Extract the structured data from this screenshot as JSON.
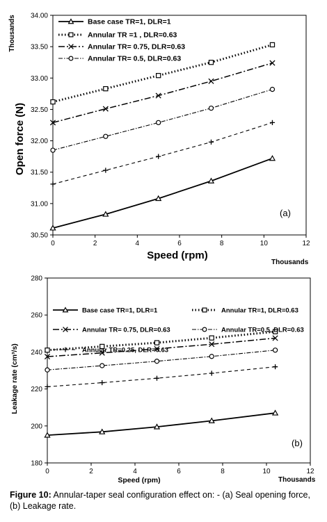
{
  "chart_data": [
    {
      "type": "line",
      "panel_label": "(a)",
      "title": "",
      "xlabel": "Speed (rpm)",
      "x_multiplier": "Thousands",
      "ylabel": "Open force (N)",
      "y_multiplier": "Thousands",
      "xlim": [
        0,
        12
      ],
      "ylim": [
        30.5,
        34.0
      ],
      "x_ticks": [
        "0",
        "2",
        "4",
        "6",
        "8",
        "10",
        "12"
      ],
      "y_ticks": [
        "30.50",
        "31.00",
        "31.50",
        "32.00",
        "32.50",
        "33.00",
        "33.50",
        "34.00"
      ],
      "grid": false,
      "legend_position": "top-left",
      "x": [
        0,
        2.5,
        5,
        7.5,
        10.4
      ],
      "series": [
        {
          "name": "Base case TR=1, DLR=1",
          "values": [
            30.61,
            30.83,
            31.08,
            31.36,
            31.72
          ]
        },
        {
          "name": "Annular TR =1 , DLR=0.63",
          "values": [
            32.62,
            32.83,
            33.04,
            33.25,
            33.53
          ]
        },
        {
          "name": "Annular TR= 0.75, DLR=0.63",
          "values": [
            32.29,
            32.51,
            32.72,
            32.95,
            33.24
          ]
        },
        {
          "name": "Annular TR= 0.5, DLR=0.63",
          "values": [
            31.85,
            32.07,
            32.29,
            32.52,
            32.82
          ]
        },
        {
          "name": "",
          "values": [
            31.31,
            31.53,
            31.75,
            31.98,
            32.29
          ]
        }
      ]
    },
    {
      "type": "line",
      "panel_label": "(b)",
      "title": "",
      "xlabel": "Speed  (rpm)",
      "x_multiplier": "Thousands",
      "ylabel": "Leakage rate  (cm³/s)",
      "xlim": [
        0,
        12
      ],
      "ylim": [
        180,
        280
      ],
      "x_ticks": [
        "0",
        "2",
        "4",
        "6",
        "8",
        "10",
        "12"
      ],
      "y_ticks": [
        "180",
        "200",
        "220",
        "240",
        "260",
        "280"
      ],
      "grid": false,
      "legend_position": "top",
      "x": [
        0,
        2.5,
        5,
        7.5,
        10.4
      ],
      "series": [
        {
          "name": "Base case TR=1, DLR=1",
          "values": [
            195,
            196.8,
            199.5,
            202.8,
            207
          ]
        },
        {
          "name": "Annular TR=1, DLR=0.63",
          "values": [
            241,
            243,
            245,
            247.6,
            251
          ]
        },
        {
          "name": "Annular TR= 0.75, DLR=0.63",
          "values": [
            237.5,
            239.5,
            241.7,
            244.2,
            247.5
          ]
        },
        {
          "name": "Annular TR=0.5, DLR=0.63",
          "values": [
            230.3,
            232.6,
            235,
            237.6,
            241
          ]
        },
        {
          "name": "Annular TR=0.25, DLR=0.63",
          "values": [
            221.2,
            223.4,
            225.8,
            228.5,
            232
          ]
        }
      ]
    }
  ],
  "caption": {
    "label": "Figure 10:",
    "text": " Annular-taper seal configuration effect on: - (a) Seal opening force, (b) Leakage rate."
  }
}
